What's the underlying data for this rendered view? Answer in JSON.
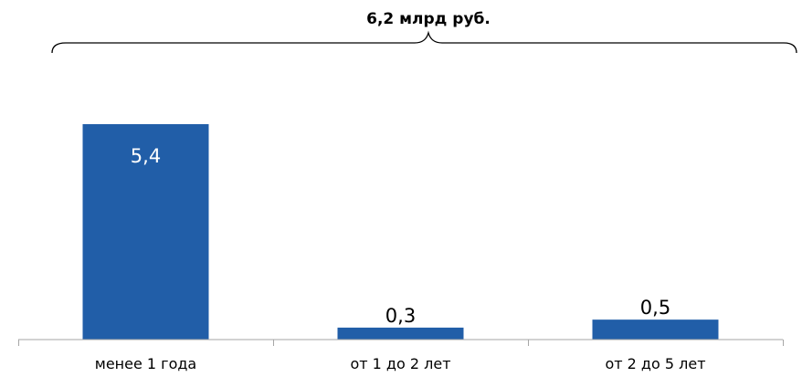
{
  "chart_data": {
    "type": "bar",
    "title": "",
    "total_annotation": "6,2 млрд руб.",
    "categories": [
      "менее 1 года",
      "от 1 до 2 лет",
      "от 2 до 5 лет"
    ],
    "values": [
      5.4,
      0.3,
      0.5
    ],
    "value_labels": [
      "5,4",
      "0,3",
      "0,5"
    ],
    "xlabel": "",
    "ylabel": "",
    "ylim": [
      0,
      6.2
    ],
    "grid": false,
    "legend": "none",
    "colors": {
      "bar": "#215ea8",
      "inside_label": "#ffffff",
      "outside_label": "#000000",
      "axis": "#a6a6a6",
      "brace": "#000000"
    }
  }
}
